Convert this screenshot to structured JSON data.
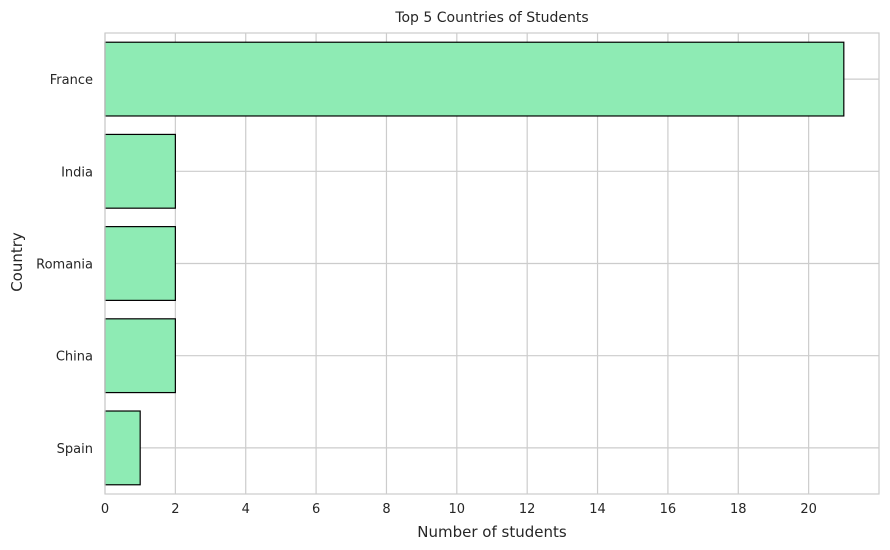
{
  "chart_data": {
    "type": "bar",
    "orientation": "horizontal",
    "title": "Top 5 Countries of Students",
    "xlabel": "Number of students",
    "ylabel": "Country",
    "categories": [
      "France",
      "India",
      "Romania",
      "China",
      "Spain"
    ],
    "values": [
      21,
      2,
      2,
      2,
      1
    ],
    "xlim": [
      0,
      22
    ],
    "xticks": [
      0,
      2,
      4,
      6,
      8,
      10,
      12,
      14,
      16,
      18,
      20
    ],
    "grid": true,
    "bar_color": "#8eebb4",
    "bar_edge_color": "#000000",
    "grid_color": "#cccccc",
    "spine_color": "#cccccc"
  }
}
